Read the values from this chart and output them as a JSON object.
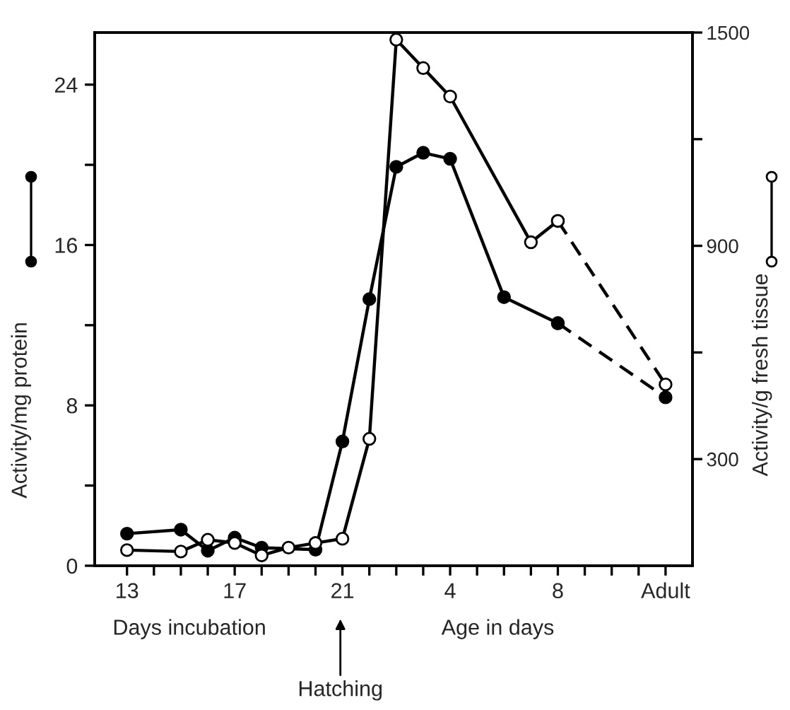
{
  "chart_data": {
    "type": "line",
    "ylabel": "Activity/mg protein",
    "y2label": "Activity/g fresh tissue",
    "categories": [
      "13",
      null,
      null,
      null,
      "17",
      null,
      null,
      null,
      "21",
      null,
      null,
      null,
      "4",
      null,
      null,
      null,
      "8",
      null,
      null,
      null,
      "Adult"
    ],
    "ylim": [
      0,
      26.6
    ],
    "y2lim": [
      0,
      1500
    ],
    "yticks": [
      0,
      {
        "value": 4,
        "label": null
      },
      8,
      {
        "value": 12,
        "label": null
      },
      16,
      {
        "value": 20,
        "label": null
      },
      24
    ],
    "y2ticks": [
      300,
      {
        "value": 600,
        "label": null
      },
      900,
      {
        "value": 1200,
        "label": null
      },
      1500
    ],
    "marker": "circle",
    "grid": false,
    "legend": false,
    "series": [
      {
        "color": "#000000",
        "line_style": "solid",
        "values": [
          1.6,
          null,
          1.8,
          0.75,
          1.4,
          0.9,
          null,
          0.8,
          6.2,
          13.3,
          19.9,
          20.6,
          20.3,
          null,
          13.4,
          null,
          12.1,
          null,
          null,
          null,
          null
        ]
      },
      {
        "color": "#000000",
        "line_style": "dashed",
        "values": [
          null,
          null,
          null,
          null,
          null,
          null,
          null,
          null,
          null,
          null,
          null,
          null,
          null,
          null,
          null,
          null,
          12.1,
          null,
          null,
          null,
          8.4
        ]
      },
      {
        "color": "#000000",
        "axis": "y2",
        "line_style": "solid",
        "values": [
          44,
          null,
          40,
          73,
          64,
          29,
          51,
          64,
          76,
          357,
          1480,
          1400,
          1320,
          null,
          null,
          910,
          970,
          null,
          null,
          null,
          null
        ]
      },
      {
        "color": "#000000",
        "axis": "y2",
        "line_style": "dashed",
        "values": [
          null,
          null,
          null,
          null,
          null,
          null,
          null,
          null,
          null,
          null,
          null,
          null,
          null,
          null,
          null,
          null,
          970,
          null,
          null,
          null,
          510
        ]
      }
    ],
    "annotations": [
      "Days incubation",
      "Age in days",
      "Hatching"
    ]
  }
}
